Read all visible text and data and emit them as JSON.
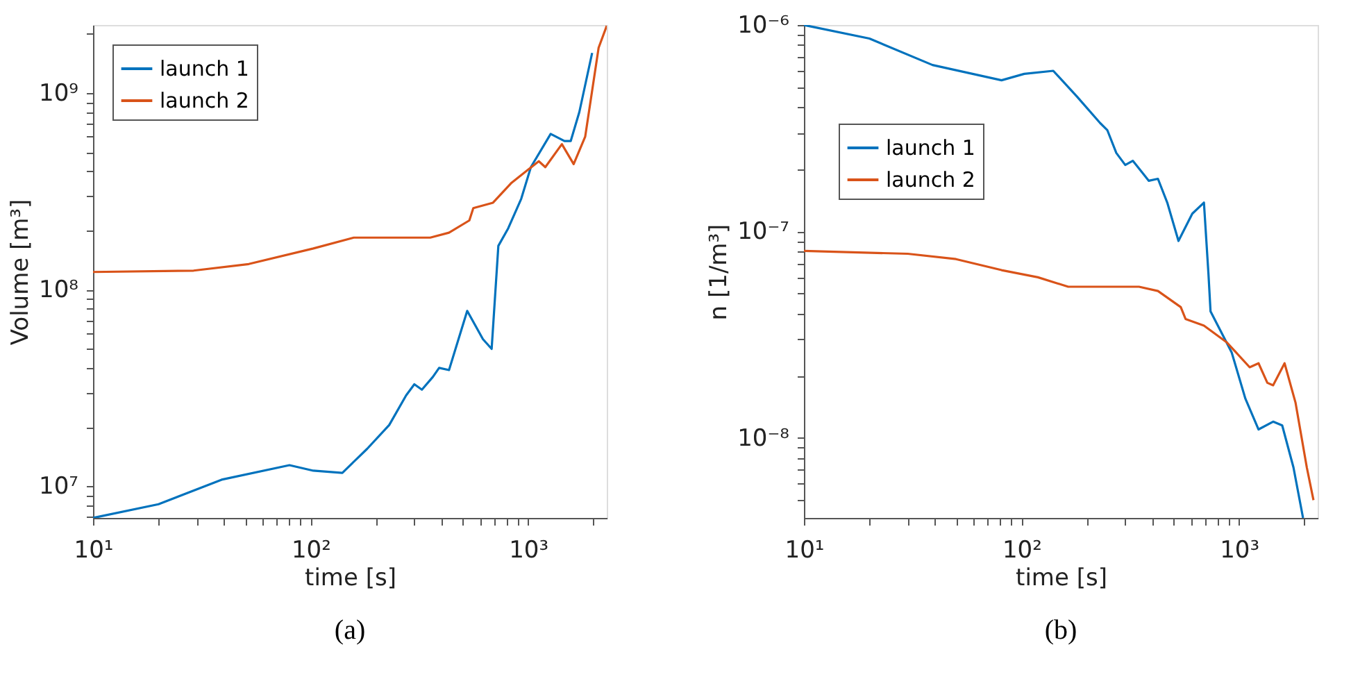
{
  "chart_data": [
    {
      "type": "line",
      "xlabel": "time [s]",
      "ylabel": "Volume [m³]",
      "annotations": [
        "(a)"
      ],
      "log": "xy",
      "grid": false,
      "legend": "top left",
      "marker": "none",
      "line_style": "solid",
      "xlim": [
        10,
        2300
      ],
      "ylim": [
        6900000,
        2220000000
      ],
      "xticks": [
        {
          "value": 10,
          "label": "10¹"
        },
        {
          "value": 20,
          "label": null
        },
        {
          "value": 30,
          "label": null
        },
        {
          "value": 40,
          "label": null
        },
        {
          "value": 50,
          "label": null
        },
        {
          "value": 60,
          "label": null
        },
        {
          "value": 70,
          "label": null
        },
        {
          "value": 80,
          "label": null
        },
        {
          "value": 90,
          "label": null
        },
        {
          "value": 100,
          "label": "10²"
        },
        {
          "value": 200,
          "label": null
        },
        {
          "value": 300,
          "label": null
        },
        {
          "value": 400,
          "label": null
        },
        {
          "value": 500,
          "label": null
        },
        {
          "value": 600,
          "label": null
        },
        {
          "value": 700,
          "label": null
        },
        {
          "value": 800,
          "label": null
        },
        {
          "value": 900,
          "label": null
        },
        {
          "value": 1000,
          "label": "10³"
        },
        {
          "value": 2000,
          "label": null
        }
      ],
      "yticks": [
        {
          "value": 7000000,
          "label": null
        },
        {
          "value": 8000000,
          "label": null
        },
        {
          "value": 9000000,
          "label": null
        },
        {
          "value": 10000000,
          "label": "10⁷"
        },
        {
          "value": 20000000,
          "label": null
        },
        {
          "value": 30000000,
          "label": null
        },
        {
          "value": 40000000,
          "label": null
        },
        {
          "value": 50000000,
          "label": null
        },
        {
          "value": 60000000,
          "label": null
        },
        {
          "value": 70000000,
          "label": null
        },
        {
          "value": 80000000,
          "label": null
        },
        {
          "value": 90000000,
          "label": null
        },
        {
          "value": 100000000,
          "label": "10⁸"
        },
        {
          "value": 200000000,
          "label": null
        },
        {
          "value": 300000000,
          "label": null
        },
        {
          "value": 400000000,
          "label": null
        },
        {
          "value": 500000000,
          "label": null
        },
        {
          "value": 600000000,
          "label": null
        },
        {
          "value": 700000000,
          "label": null
        },
        {
          "value": 800000000,
          "label": null
        },
        {
          "value": 900000000,
          "label": null
        },
        {
          "value": 1000000000,
          "label": "10⁹"
        },
        {
          "value": 2000000000,
          "label": null
        }
      ],
      "series": [
        {
          "name": "launch 1",
          "color": "#0072bd",
          "x": [
            10,
            20,
            39,
            80,
            103,
            140,
            182,
            230,
            275,
            300,
            325,
            365,
            390,
            433,
            525,
            620,
            680,
            730,
            810,
            930,
            1030,
            1270,
            1470,
            1570,
            1720,
            1970
          ],
          "values": [
            6900000,
            8100000,
            10800000,
            12800000,
            12000000,
            11700000,
            15500000,
            20500000,
            29000000,
            33000000,
            31000000,
            36000000,
            40000000,
            39000000,
            78000000,
            56000000,
            50000000,
            167000000,
            205000000,
            290000000,
            420000000,
            620000000,
            570000000,
            570000000,
            800000000,
            1600000000
          ]
        },
        {
          "name": "launch 2",
          "color": "#d95319",
          "x": [
            10,
            29,
            52,
            103,
            158,
            355,
            433,
            537,
            560,
            690,
            840,
            1120,
            1200,
            1430,
            1620,
            1830,
            2110,
            2300
          ],
          "values": [
            123000000,
            125000000,
            135000000,
            162000000,
            184000000,
            184000000,
            195000000,
            225000000,
            260000000,
            277000000,
            350000000,
            450000000,
            420000000,
            550000000,
            435000000,
            600000000,
            1700000000,
            2200000000
          ]
        }
      ]
    },
    {
      "type": "line",
      "xlabel": "time [s]",
      "ylabel": "n [1/m³]",
      "annotations": [
        "(b)"
      ],
      "log": "xy",
      "grid": false,
      "legend": "left",
      "marker": "none",
      "line_style": "solid",
      "xlim": [
        10,
        2300
      ],
      "ylim": [
        4.1e-09,
        1e-06
      ],
      "xticks": [
        {
          "value": 10,
          "label": "10¹"
        },
        {
          "value": 20,
          "label": null
        },
        {
          "value": 30,
          "label": null
        },
        {
          "value": 40,
          "label": null
        },
        {
          "value": 50,
          "label": null
        },
        {
          "value": 60,
          "label": null
        },
        {
          "value": 70,
          "label": null
        },
        {
          "value": 80,
          "label": null
        },
        {
          "value": 90,
          "label": null
        },
        {
          "value": 100,
          "label": "10²"
        },
        {
          "value": 200,
          "label": null
        },
        {
          "value": 300,
          "label": null
        },
        {
          "value": 400,
          "label": null
        },
        {
          "value": 500,
          "label": null
        },
        {
          "value": 600,
          "label": null
        },
        {
          "value": 700,
          "label": null
        },
        {
          "value": 800,
          "label": null
        },
        {
          "value": 900,
          "label": null
        },
        {
          "value": 1000,
          "label": "10³"
        },
        {
          "value": 2000,
          "label": null
        }
      ],
      "yticks": [
        {
          "value": 5e-09,
          "label": null
        },
        {
          "value": 6e-09,
          "label": null
        },
        {
          "value": 7e-09,
          "label": null
        },
        {
          "value": 8e-09,
          "label": null
        },
        {
          "value": 9e-09,
          "label": null
        },
        {
          "value": 1e-08,
          "label": "10⁻⁸"
        },
        {
          "value": 2e-08,
          "label": null
        },
        {
          "value": 3e-08,
          "label": null
        },
        {
          "value": 4e-08,
          "label": null
        },
        {
          "value": 5e-08,
          "label": null
        },
        {
          "value": 6e-08,
          "label": null
        },
        {
          "value": 7e-08,
          "label": null
        },
        {
          "value": 8e-08,
          "label": null
        },
        {
          "value": 9e-08,
          "label": null
        },
        {
          "value": 1e-07,
          "label": "10⁻⁷"
        },
        {
          "value": 2e-07,
          "label": null
        },
        {
          "value": 3e-07,
          "label": null
        },
        {
          "value": 4e-07,
          "label": null
        },
        {
          "value": 5e-07,
          "label": null
        },
        {
          "value": 6e-07,
          "label": null
        },
        {
          "value": 7e-07,
          "label": null
        },
        {
          "value": 8e-07,
          "label": null
        },
        {
          "value": 9e-07,
          "label": null
        },
        {
          "value": 1e-06,
          "label": "10⁻⁶"
        }
      ],
      "series": [
        {
          "name": "launch 1",
          "color": "#0072bd",
          "x": [
            10,
            20,
            39,
            81,
            103,
            140,
            180,
            230,
            248,
            273,
            300,
            325,
            385,
            424,
            468,
            527,
            610,
            690,
            724,
            740,
            925,
            1070,
            1230,
            1435,
            1580,
            1780,
            1970
          ],
          "values": [
            1e-06,
            8.6e-07,
            6.4e-07,
            5.4e-07,
            5.8e-07,
            6e-07,
            4.5e-07,
            3.35e-07,
            3.1e-07,
            2.4e-07,
            2.1e-07,
            2.2e-07,
            1.76e-07,
            1.8e-07,
            1.38e-07,
            9e-08,
            1.22e-07,
            1.38e-07,
            6.2e-08,
            4.1e-08,
            2.6e-08,
            1.55e-08,
            1.1e-08,
            1.2e-08,
            1.15e-08,
            7.2e-09,
            4.1e-09
          ]
        },
        {
          "name": "launch 2",
          "color": "#d95319",
          "x": [
            10,
            30,
            50,
            81,
            119,
            164,
            214,
            347,
            424,
            540,
            568,
            690,
            880,
            1120,
            1230,
            1350,
            1435,
            1620,
            1820,
            2050,
            2200
          ],
          "values": [
            8.05e-08,
            7.8e-08,
            7.35e-08,
            6.5e-08,
            6e-08,
            5.4e-08,
            5.4e-08,
            5.4e-08,
            5.15e-08,
            4.3e-08,
            3.77e-08,
            3.5e-08,
            2.9e-08,
            2.2e-08,
            2.3e-08,
            1.85e-08,
            1.8e-08,
            2.3e-08,
            1.48e-08,
            7.2e-09,
            5e-09
          ]
        }
      ]
    }
  ]
}
